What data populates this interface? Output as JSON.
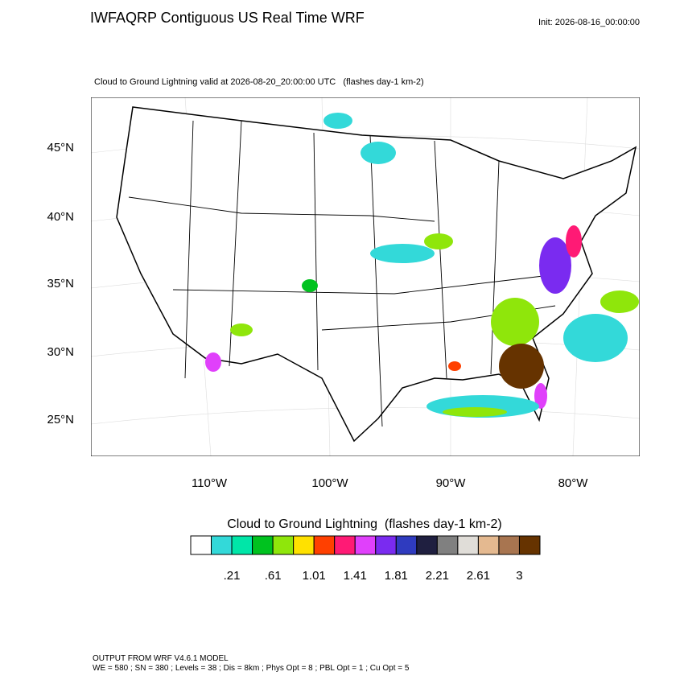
{
  "header": {
    "title": "IWFAQRP Contiguous US Real Time WRF",
    "init": "Init: 2026-08-16_00:00:00"
  },
  "map": {
    "subtitle": "Cloud to Ground Lightning valid at 2026-08-20_20:00:00 UTC   (flashes day-1 km-2)",
    "lat_labels": [
      "45°N",
      "40°N",
      "35°N",
      "30°N",
      "25°N"
    ],
    "lon_labels": [
      "110°W",
      "100°W",
      "90°W",
      "80°W"
    ]
  },
  "colorbar": {
    "title": "Cloud to Ground Lightning  (flashes day-1 km-2)",
    "colors": [
      "#ffffff",
      "#33d9d9",
      "#00e6a8",
      "#00c21f",
      "#8fe60b",
      "#ffe100",
      "#ff4000",
      "#ff1a75",
      "#e040fb",
      "#7a2bf0",
      "#2f3bbf",
      "#1f1f40",
      "#808080",
      "#e0ddd8",
      "#e4b990",
      "#a87550",
      "#663300"
    ],
    "labels": [
      ".21",
      ".61",
      "1.01",
      "1.41",
      "1.81",
      "2.21",
      "2.61",
      "3"
    ]
  },
  "footer": {
    "lines": [
      "OUTPUT FROM WRF V4.6.1 MODEL",
      "WE = 580 ; SN = 380 ; Levels = 38 ; Dis = 8km ; Phys Opt = 8 ; PBL Opt = 1 ; Cu Opt = 5"
    ]
  }
}
